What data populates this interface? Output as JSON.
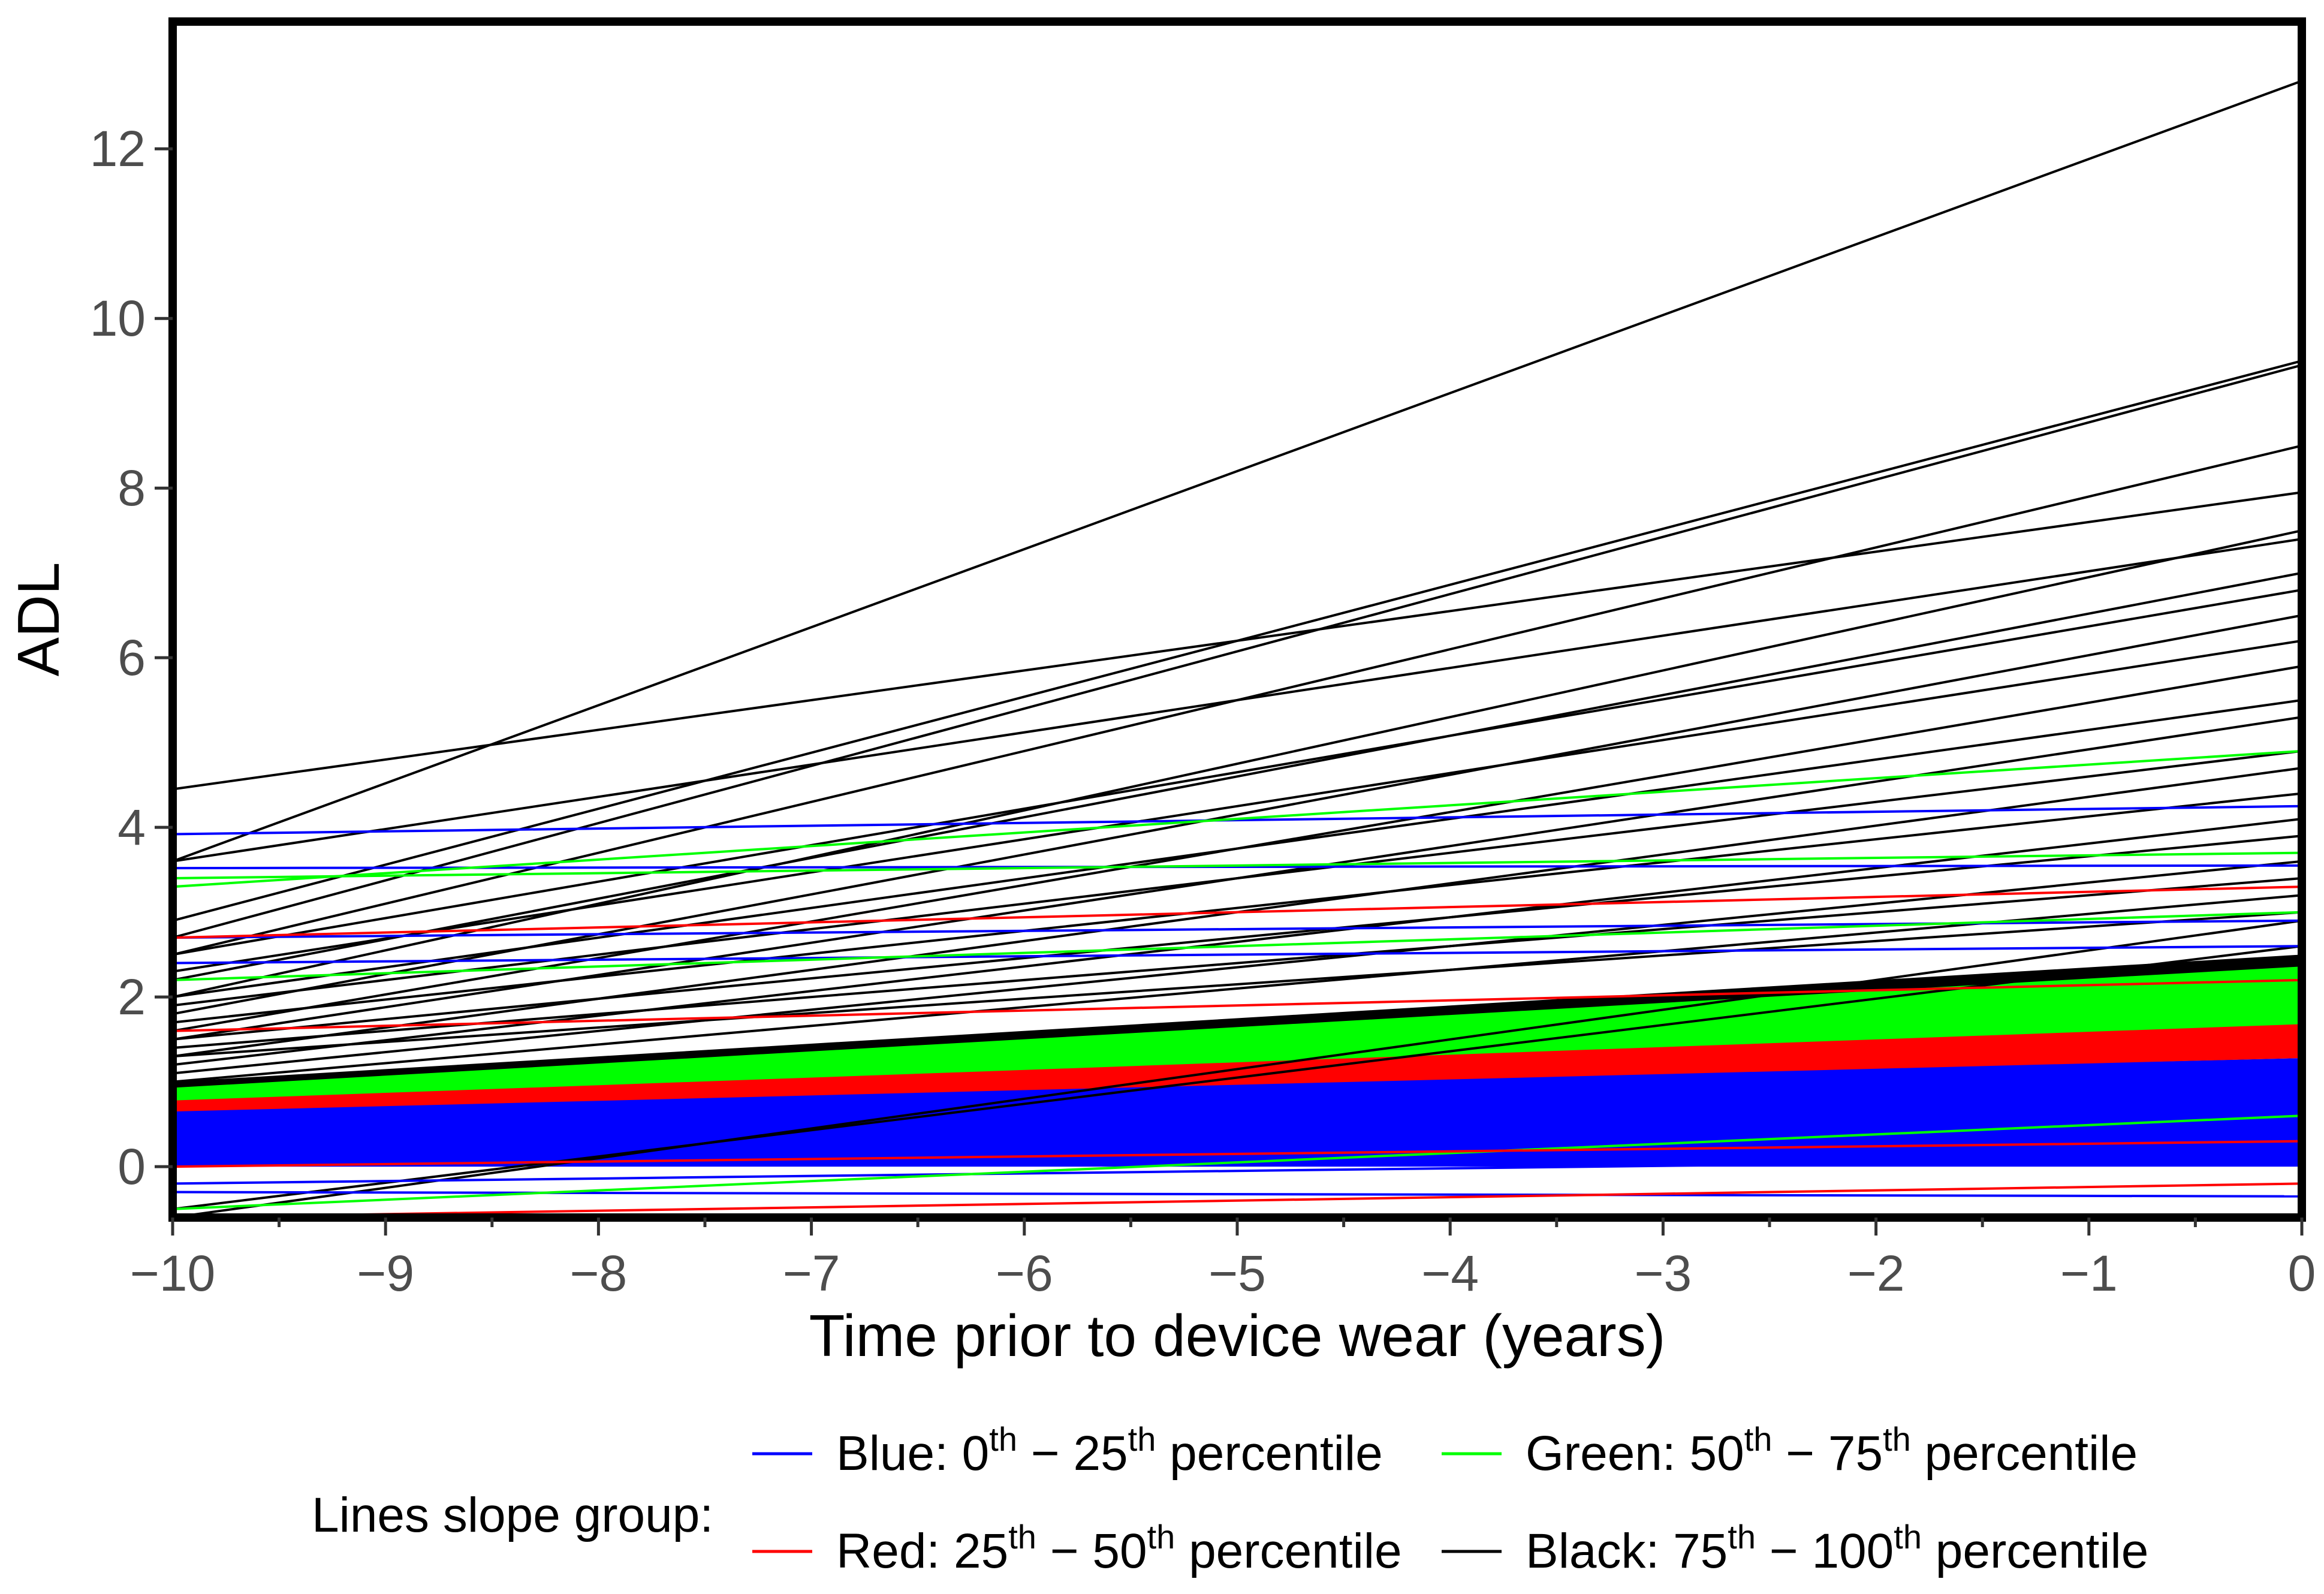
{
  "chart_data": {
    "type": "line",
    "title": "",
    "xlabel": "Time prior to device wear (years)",
    "ylabel": "ADL",
    "xlim": [
      -10,
      0
    ],
    "ylim": [
      -0.6,
      13.5
    ],
    "xticks": [
      -10,
      -9,
      -8,
      -7,
      -6,
      -5,
      -4,
      -3,
      -2,
      -1,
      0
    ],
    "xtick_labels": [
      "−10",
      "−9",
      "−8",
      "−7",
      "−6",
      "−5",
      "−4",
      "−3",
      "−2",
      "−1",
      "0"
    ],
    "yticks": [
      0,
      2,
      4,
      6,
      8,
      10,
      12
    ],
    "ytick_labels": [
      "0",
      "2",
      "4",
      "6",
      "8",
      "10",
      "12"
    ],
    "grid": false,
    "legend": {
      "position": "bottom",
      "title": "Lines slope group:",
      "entries": [
        {
          "key": "blue",
          "prefix": "Blue: 0",
          "sup1": "th",
          "mid": " − 25",
          "sup2": "th",
          "suffix": " percentile",
          "color": "#0000ff"
        },
        {
          "key": "red",
          "prefix": "Red: 25",
          "sup1": "th",
          "mid": " − 50",
          "sup2": "th",
          "suffix": " percentile",
          "color": "#ff0000"
        },
        {
          "key": "green",
          "prefix": "Green: 50",
          "sup1": "th",
          "mid": " − 75",
          "sup2": "th",
          "suffix": " percentile",
          "color": "#00ff00"
        },
        {
          "key": "black",
          "prefix": "Black: 75",
          "sup1": "th",
          "mid": " − 100",
          "sup2": "th",
          "suffix": " percentile",
          "color": "#000000"
        }
      ]
    },
    "bands": [
      {
        "group": "blue",
        "color": "#0000ff",
        "x": [
          -10,
          0
        ],
        "lower": [
          0.0,
          0.0
        ],
        "upper": [
          0.68,
          1.28
        ]
      },
      {
        "group": "red",
        "color": "#ff0000",
        "x": [
          -10,
          0
        ],
        "lower": [
          0.65,
          1.28
        ],
        "upper": [
          0.8,
          1.7
        ]
      },
      {
        "group": "green",
        "color": "#00ff00",
        "x": [
          -10,
          0
        ],
        "lower": [
          0.78,
          1.68
        ],
        "upper": [
          0.95,
          2.38
        ]
      },
      {
        "group": "black",
        "color": "#000000",
        "x": [
          -10,
          0
        ],
        "lower": [
          0.93,
          2.36
        ],
        "upper": [
          1.0,
          2.5
        ]
      }
    ],
    "series": [
      {
        "group": "black",
        "color": "#000000",
        "x": [
          -10,
          0
        ],
        "y": [
          3.6,
          12.8
        ]
      },
      {
        "group": "black",
        "color": "#000000",
        "x": [
          -10,
          0
        ],
        "y": [
          2.9,
          9.5
        ]
      },
      {
        "group": "black",
        "color": "#000000",
        "x": [
          -10,
          0
        ],
        "y": [
          2.7,
          9.45
        ]
      },
      {
        "group": "black",
        "color": "#000000",
        "x": [
          -10,
          0
        ],
        "y": [
          2.5,
          8.5
        ]
      },
      {
        "group": "black",
        "color": "#000000",
        "x": [
          -10,
          0
        ],
        "y": [
          4.45,
          7.95
        ]
      },
      {
        "group": "black",
        "color": "#000000",
        "x": [
          -10,
          0
        ],
        "y": [
          2.0,
          7.5
        ]
      },
      {
        "group": "black",
        "color": "#000000",
        "x": [
          -10,
          0
        ],
        "y": [
          3.6,
          7.4
        ]
      },
      {
        "group": "black",
        "color": "#000000",
        "x": [
          -10,
          0
        ],
        "y": [
          2.2,
          7.0
        ]
      },
      {
        "group": "black",
        "color": "#000000",
        "x": [
          -10,
          0
        ],
        "y": [
          2.5,
          6.8
        ]
      },
      {
        "group": "black",
        "color": "#000000",
        "x": [
          -10,
          0
        ],
        "y": [
          1.8,
          6.5
        ]
      },
      {
        "group": "black",
        "color": "#000000",
        "x": [
          -10,
          0
        ],
        "y": [
          2.3,
          6.2
        ]
      },
      {
        "group": "black",
        "color": "#000000",
        "x": [
          -10,
          0
        ],
        "y": [
          1.6,
          5.9
        ]
      },
      {
        "group": "black",
        "color": "#000000",
        "x": [
          -10,
          0
        ],
        "y": [
          2.0,
          5.5
        ]
      },
      {
        "group": "black",
        "color": "#000000",
        "x": [
          -10,
          0
        ],
        "y": [
          1.5,
          5.3
        ]
      },
      {
        "group": "black",
        "color": "#000000",
        "x": [
          -10,
          0
        ],
        "y": [
          1.9,
          4.9
        ]
      },
      {
        "group": "black",
        "color": "#000000",
        "x": [
          -10,
          0
        ],
        "y": [
          1.3,
          4.7
        ]
      },
      {
        "group": "black",
        "color": "#000000",
        "x": [
          -10,
          0
        ],
        "y": [
          1.7,
          4.4
        ]
      },
      {
        "group": "black",
        "color": "#000000",
        "x": [
          -10,
          0
        ],
        "y": [
          1.2,
          4.1
        ]
      },
      {
        "group": "black",
        "color": "#000000",
        "x": [
          -10,
          0
        ],
        "y": [
          1.5,
          3.9
        ]
      },
      {
        "group": "black",
        "color": "#000000",
        "x": [
          -10,
          0
        ],
        "y": [
          1.1,
          3.6
        ]
      },
      {
        "group": "black",
        "color": "#000000",
        "x": [
          -10,
          0
        ],
        "y": [
          1.4,
          3.4
        ]
      },
      {
        "group": "black",
        "color": "#000000",
        "x": [
          -10,
          0
        ],
        "y": [
          1.0,
          3.2
        ]
      },
      {
        "group": "black",
        "color": "#000000",
        "x": [
          -10,
          0
        ],
        "y": [
          1.3,
          3.0
        ]
      },
      {
        "group": "black",
        "color": "#000000",
        "x": [
          -10,
          0
        ],
        "y": [
          -0.6,
          2.9
        ]
      },
      {
        "group": "black",
        "color": "#000000",
        "x": [
          -10,
          0
        ],
        "y": [
          -0.5,
          2.6
        ]
      },
      {
        "group": "blue",
        "color": "#0000ff",
        "x": [
          -10,
          0
        ],
        "y": [
          3.92,
          4.25
        ]
      },
      {
        "group": "blue",
        "color": "#0000ff",
        "x": [
          -10,
          0
        ],
        "y": [
          3.52,
          3.55
        ]
      },
      {
        "group": "blue",
        "color": "#0000ff",
        "x": [
          -10,
          0
        ],
        "y": [
          2.7,
          2.9
        ]
      },
      {
        "group": "blue",
        "color": "#0000ff",
        "x": [
          -10,
          0
        ],
        "y": [
          2.4,
          2.6
        ]
      },
      {
        "group": "blue",
        "color": "#0000ff",
        "x": [
          -10,
          0
        ],
        "y": [
          -0.3,
          -0.35
        ]
      },
      {
        "group": "blue",
        "color": "#0000ff",
        "x": [
          -10,
          0
        ],
        "y": [
          -0.2,
          0.1
        ]
      },
      {
        "group": "green",
        "color": "#00ff00",
        "x": [
          -10,
          0
        ],
        "y": [
          3.3,
          4.9
        ]
      },
      {
        "group": "green",
        "color": "#00ff00",
        "x": [
          -10,
          0
        ],
        "y": [
          3.4,
          3.7
        ]
      },
      {
        "group": "green",
        "color": "#00ff00",
        "x": [
          -10,
          0
        ],
        "y": [
          2.2,
          3.0
        ]
      },
      {
        "group": "green",
        "color": "#00ff00",
        "x": [
          -10,
          0
        ],
        "y": [
          -0.5,
          0.6
        ]
      },
      {
        "group": "red",
        "color": "#ff0000",
        "x": [
          -10,
          0
        ],
        "y": [
          2.7,
          3.3
        ]
      },
      {
        "group": "red",
        "color": "#ff0000",
        "x": [
          -10,
          0
        ],
        "y": [
          1.6,
          2.2
        ]
      },
      {
        "group": "red",
        "color": "#ff0000",
        "x": [
          -10,
          0
        ],
        "y": [
          -0.6,
          -0.2
        ]
      },
      {
        "group": "red",
        "color": "#ff0000",
        "x": [
          -10,
          0
        ],
        "y": [
          0.0,
          0.3
        ]
      }
    ]
  }
}
